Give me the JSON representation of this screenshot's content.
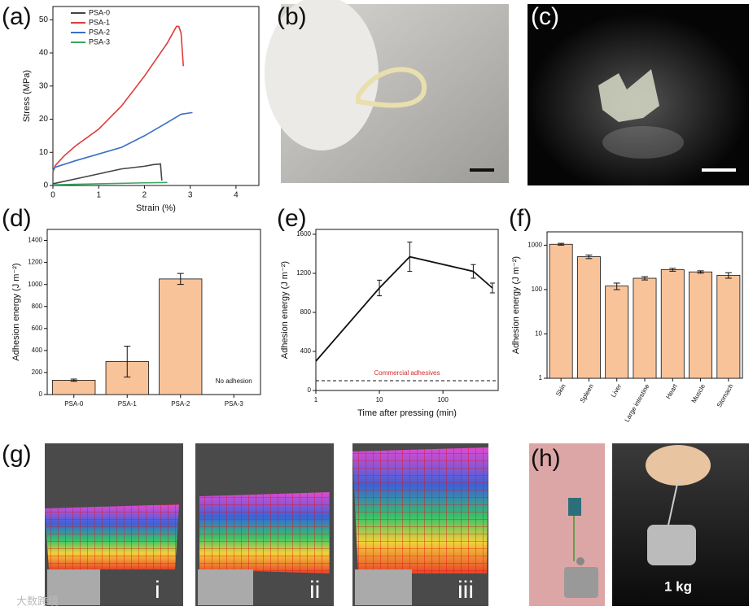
{
  "panel_labels": [
    "(a)",
    "(b)",
    "(c)",
    "(d)",
    "(e)",
    "(f)",
    "(g)",
    "(h)"
  ],
  "photos": {
    "g_labels": [
      "i",
      "ii",
      "iii"
    ],
    "h_label": "1 kg",
    "watermark": "大数跨境"
  },
  "chart_data": [
    {
      "type": "line",
      "xlabel": "Strain (%)",
      "ylabel": "Stress (MPa)",
      "xlim": [
        0,
        4.5
      ],
      "xticks": [
        0,
        1,
        2,
        3,
        4
      ],
      "ylim": [
        0,
        54
      ],
      "yticks": [
        0,
        10,
        20,
        30,
        40,
        50
      ],
      "legend": "upper left",
      "series": [
        {
          "name": "PSA-0",
          "color": "#444444",
          "x": [
            0,
            0.5,
            1,
            1.5,
            2,
            2.2,
            2.35,
            2.38
          ],
          "values": [
            0.5,
            2,
            3.5,
            5,
            5.8,
            6.3,
            6.5,
            1.5
          ]
        },
        {
          "name": "PSA-1",
          "color": "#e03a3a",
          "x": [
            0,
            0.05,
            0.25,
            0.5,
            1,
            1.5,
            2,
            2.5,
            2.7,
            2.75,
            2.8,
            2.85
          ],
          "values": [
            4,
            6,
            9,
            12,
            17,
            24,
            33,
            43,
            48,
            48,
            46,
            36
          ]
        },
        {
          "name": "PSA-2",
          "color": "#3a6fc4",
          "x": [
            0,
            0.05,
            0.5,
            1,
            1.5,
            2,
            2.5,
            2.8,
            3.05
          ],
          "values": [
            4.5,
            5.5,
            7.5,
            9.5,
            11.5,
            15,
            19,
            21.5,
            22
          ]
        },
        {
          "name": "PSA-3",
          "color": "#3aa860",
          "x": [
            0,
            1,
            2,
            2.5
          ],
          "values": [
            0.2,
            0.5,
            0.8,
            0.9
          ]
        }
      ]
    },
    {
      "type": "bar",
      "ylabel": "Adhesion energy (J m⁻²)",
      "categories": [
        "PSA-0",
        "PSA-1",
        "PSA-2",
        "PSA-3"
      ],
      "values": [
        130,
        300,
        1050,
        null
      ],
      "value_labels": [
        null,
        null,
        null,
        "No adhesion"
      ],
      "errors": [
        10,
        140,
        50,
        null
      ],
      "color": "#f9c39a",
      "ylim": [
        0,
        1500
      ],
      "yticks": [
        0,
        200,
        400,
        600,
        800,
        1000,
        1200,
        1400
      ]
    },
    {
      "type": "line",
      "xlabel": "Time after pressing (min)",
      "ylabel": "Adhesion energy (J m⁻²)",
      "xlog": true,
      "xlim": [
        1,
        740
      ],
      "xticks": [
        1,
        10,
        100
      ],
      "ylim": [
        0,
        1650
      ],
      "yticks": [
        0,
        400,
        800,
        1200,
        1600
      ],
      "series": [
        {
          "color": "#111111",
          "x": [
            1,
            10,
            30,
            300,
            600
          ],
          "values": [
            300,
            1050,
            1370,
            1220,
            1050
          ],
          "errors": [
            null,
            80,
            150,
            70,
            50
          ]
        }
      ],
      "reference_line": {
        "value": 100,
        "label": "Commercial adhesives",
        "color": "#d62728"
      }
    },
    {
      "type": "bar",
      "ylabel": "Adhesion energy (J m⁻²)",
      "ylog": true,
      "categories": [
        "Skin",
        "Spleen",
        "Liver",
        "Large intestine",
        "Heart",
        "Muscle",
        "Stomach"
      ],
      "values": [
        1050,
        550,
        120,
        180,
        280,
        250,
        210
      ],
      "errors": [
        50,
        50,
        20,
        15,
        20,
        15,
        30
      ],
      "color": "#f9c39a",
      "ylim": [
        1,
        2000
      ],
      "yticks": [
        1,
        10,
        100,
        1000
      ]
    }
  ]
}
